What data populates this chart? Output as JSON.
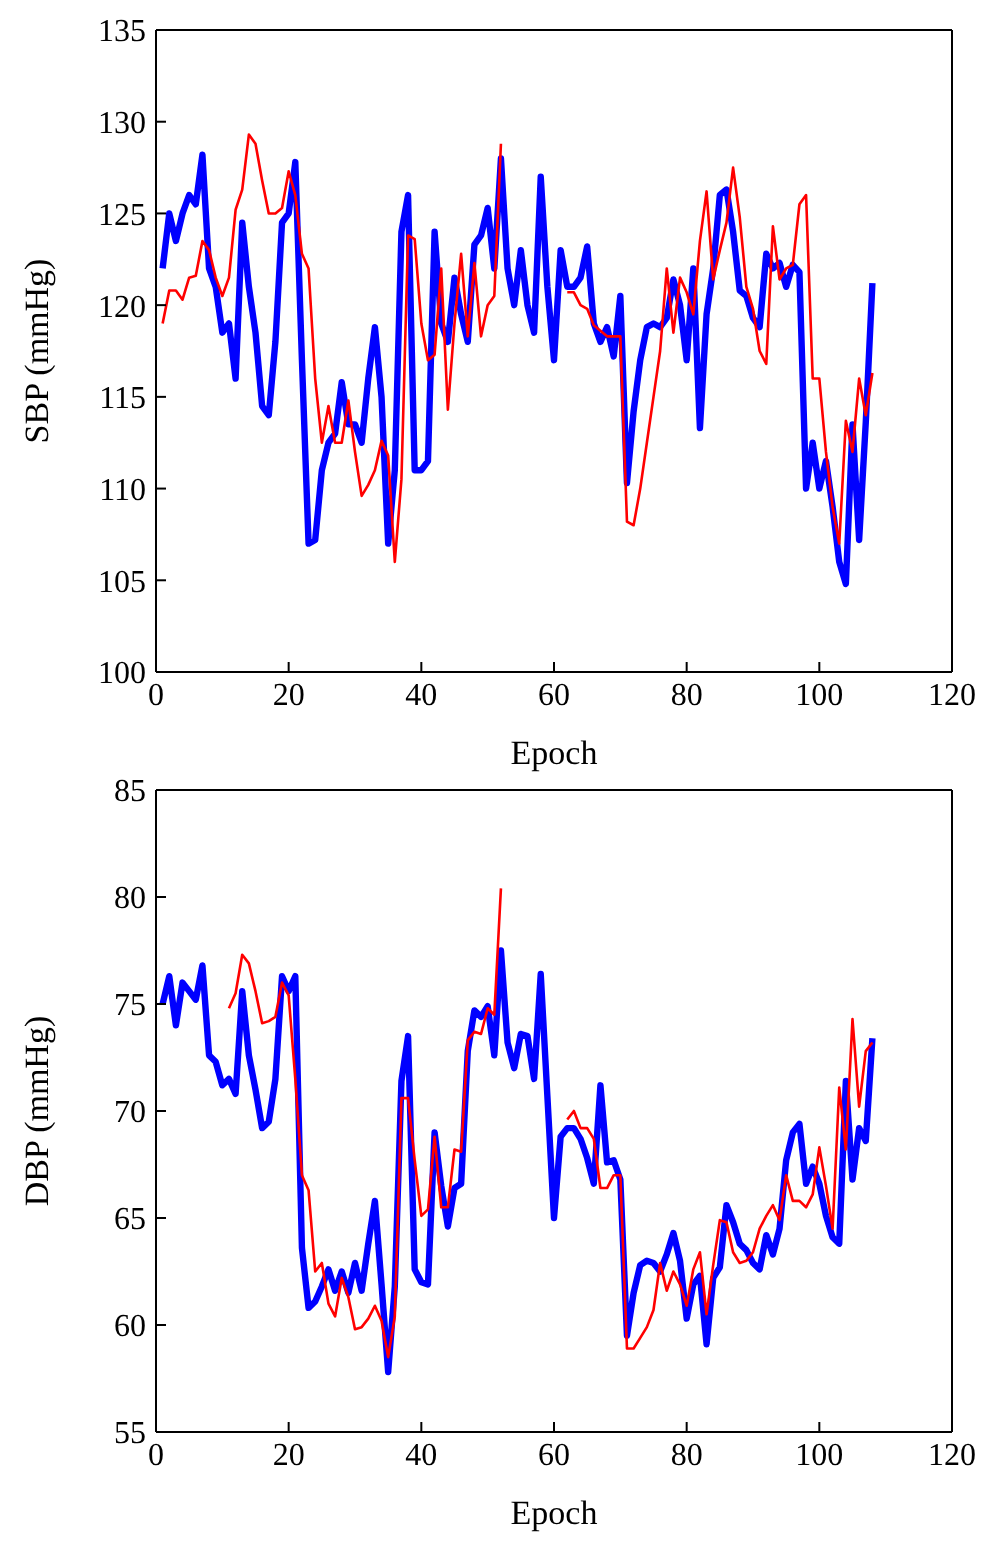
{
  "chart_data": [
    {
      "type": "line",
      "xlabel": "Epoch",
      "ylabel": "SBP (mmHg)",
      "xlim": [
        0,
        120
      ],
      "xticks": [
        0,
        20,
        40,
        60,
        80,
        100,
        120
      ],
      "ylim": [
        100,
        135
      ],
      "yticks": [
        100,
        105,
        110,
        115,
        120,
        125,
        130,
        135
      ],
      "x": [
        1,
        2,
        3,
        4,
        5,
        6,
        7,
        8,
        9,
        10,
        11,
        12,
        13,
        14,
        15,
        16,
        17,
        18,
        19,
        20,
        21,
        22,
        23,
        24,
        25,
        26,
        27,
        28,
        29,
        30,
        31,
        32,
        33,
        34,
        35,
        36,
        37,
        38,
        39,
        40,
        41,
        42,
        43,
        44,
        45,
        46,
        47,
        48,
        49,
        50,
        51,
        52,
        53,
        54,
        55,
        56,
        57,
        58,
        59,
        60,
        61,
        62,
        63,
        64,
        65,
        66,
        67,
        68,
        69,
        70,
        71,
        72,
        73,
        74,
        75,
        76,
        77,
        78,
        79,
        80,
        81,
        82,
        83,
        84,
        85,
        86,
        87,
        88,
        89,
        90,
        91,
        92,
        93,
        94,
        95,
        96,
        97,
        98,
        99,
        100,
        101,
        102,
        103,
        104,
        105,
        106,
        107,
        108
      ],
      "series": [
        {
          "color": "#0000ff",
          "values": [
            122,
            125,
            123.5,
            125,
            126,
            125.5,
            128.2,
            122,
            121,
            118.5,
            119,
            116,
            124.5,
            121,
            118.5,
            114.5,
            114,
            118,
            124.5,
            125,
            127.8,
            117,
            107,
            107.2,
            111,
            112.5,
            113,
            115.8,
            113.5,
            113.5,
            112.5,
            116,
            118.8,
            115,
            107,
            111,
            124,
            126,
            111,
            111,
            111.5,
            124,
            119,
            118,
            121.5,
            119.5,
            118,
            123.3,
            123.8,
            125.3,
            122,
            128,
            122,
            120,
            123,
            120,
            118.5,
            127,
            121,
            117,
            123,
            121,
            121,
            121.5,
            123.2,
            119,
            118,
            118.8,
            117.2,
            120.5,
            110.3,
            114.2,
            117,
            118.8,
            119,
            118.8,
            119.3,
            121.4,
            120,
            117,
            122,
            113.3,
            119.5,
            122,
            126,
            126.3,
            124,
            120.8,
            120.5,
            119.3,
            118.8,
            122.8,
            122,
            122.3,
            121,
            122.2,
            121.8,
            110,
            112.5,
            110,
            111.5,
            109,
            106,
            104.8,
            113.5,
            107.2,
            113.6,
            121.2
          ]
        },
        {
          "color": "#ff0000",
          "values": [
            119,
            120.8,
            120.8,
            120.3,
            121.5,
            121.6,
            123.5,
            123,
            121.5,
            120.5,
            121.5,
            125.2,
            126.3,
            129.3,
            128.8,
            126.8,
            125,
            125,
            125.3,
            127.3,
            126,
            122.8,
            122,
            116,
            112.5,
            114.5,
            112.5,
            112.5,
            114.8,
            112,
            109.6,
            110.2,
            111,
            112.6,
            111.8,
            106,
            110.5,
            123.8,
            123.6,
            119,
            117,
            117.3,
            122,
            114.3,
            119,
            122.8,
            118.3,
            122.3,
            118.3,
            120,
            120.5,
            128.8,
            null,
            null,
            null,
            null,
            null,
            null,
            null,
            null,
            null,
            120.7,
            120.7,
            120,
            119.8,
            118.9,
            118.6,
            118.3,
            118.3,
            118.3,
            108.2,
            108,
            110,
            112.5,
            115,
            117.5,
            122,
            118.5,
            121.5,
            120.7,
            119.5,
            123.5,
            126.2,
            121.4,
            123,
            124.5,
            127.5,
            124.8,
            121,
            119.8,
            117.5,
            116.8,
            124.3,
            121.4,
            122,
            122.2,
            125.5,
            126,
            116,
            116,
            112,
            109,
            107,
            113.7,
            112,
            116,
            114,
            116.3
          ]
        }
      ]
    },
    {
      "type": "line",
      "xlabel": "Epoch",
      "ylabel": "DBP (mmHg)",
      "xlim": [
        0,
        120
      ],
      "xticks": [
        0,
        20,
        40,
        60,
        80,
        100,
        120
      ],
      "ylim": [
        55,
        85
      ],
      "yticks": [
        55,
        60,
        65,
        70,
        75,
        80,
        85
      ],
      "x": [
        1,
        2,
        3,
        4,
        5,
        6,
        7,
        8,
        9,
        10,
        11,
        12,
        13,
        14,
        15,
        16,
        17,
        18,
        19,
        20,
        21,
        22,
        23,
        24,
        25,
        26,
        27,
        28,
        29,
        30,
        31,
        32,
        33,
        34,
        35,
        36,
        37,
        38,
        39,
        40,
        41,
        42,
        43,
        44,
        45,
        46,
        47,
        48,
        49,
        50,
        51,
        52,
        53,
        54,
        55,
        56,
        57,
        58,
        59,
        60,
        61,
        62,
        63,
        64,
        65,
        66,
        67,
        68,
        69,
        70,
        71,
        72,
        73,
        74,
        75,
        76,
        77,
        78,
        79,
        80,
        81,
        82,
        83,
        84,
        85,
        86,
        87,
        88,
        89,
        90,
        91,
        92,
        93,
        94,
        95,
        96,
        97,
        98,
        99,
        100,
        101,
        102,
        103,
        104,
        105,
        106,
        107,
        108
      ],
      "series": [
        {
          "color": "#0000ff",
          "values": [
            75,
            76.3,
            74,
            76,
            75.6,
            75.2,
            76.8,
            72.6,
            72.3,
            71.2,
            71.5,
            70.8,
            75.6,
            72.6,
            71,
            69.2,
            69.5,
            71.5,
            76.3,
            75.6,
            76.3,
            63.6,
            60.8,
            61.1,
            61.8,
            62.6,
            61.6,
            62.5,
            61.5,
            62.9,
            61.6,
            63.8,
            65.8,
            61.9,
            57.8,
            61.8,
            71.4,
            73.5,
            62.6,
            62,
            61.9,
            69,
            66.5,
            64.6,
            66.4,
            66.6,
            72.8,
            74.7,
            74.4,
            74.9,
            72.6,
            77.5,
            73.2,
            72,
            73.6,
            73.5,
            71.5,
            76.4,
            70.7,
            65,
            68.8,
            69.2,
            69.2,
            68.7,
            67.8,
            66.6,
            71.2,
            67.6,
            67.7,
            66.8,
            59.5,
            61.5,
            62.8,
            63,
            62.9,
            62.5,
            63.3,
            64.3,
            63,
            60.3,
            61.9,
            62.3,
            59.1,
            62.2,
            62.7,
            65.6,
            64.8,
            63.8,
            63.5,
            62.9,
            62.6,
            64.2,
            63.3,
            64.5,
            67.7,
            69,
            69.4,
            66.6,
            67.4,
            66.6,
            65.1,
            64.1,
            63.8,
            71.4,
            66.8,
            69.2,
            68.6,
            73.4
          ]
        },
        {
          "color": "#ff0000",
          "values": [
            null,
            null,
            null,
            null,
            null,
            null,
            null,
            null,
            null,
            null,
            74.8,
            75.5,
            77.3,
            76.9,
            75.6,
            74.1,
            74.2,
            74.4,
            76,
            75.4,
            71.5,
            67,
            66.3,
            62.5,
            62.9,
            61,
            60.4,
            62.2,
            61.3,
            59.8,
            59.9,
            60.3,
            60.9,
            60.2,
            58.5,
            60.4,
            70.6,
            70.6,
            67.7,
            65.1,
            65.4,
            68.8,
            65.5,
            65.5,
            68.2,
            68.1,
            73.3,
            73.7,
            73.6,
            74.8,
            74.5,
            80.4,
            null,
            null,
            null,
            null,
            null,
            null,
            null,
            null,
            null,
            69.6,
            70,
            69.2,
            69.2,
            68.7,
            66.4,
            66.4,
            67,
            67,
            58.9,
            58.9,
            59.4,
            59.9,
            60.7,
            62.9,
            61.6,
            62.5,
            61.9,
            60.9,
            62.6,
            63.4,
            60.5,
            62.8,
            64.9,
            64.8,
            63.4,
            62.9,
            63,
            63.4,
            64.5,
            65.1,
            65.6,
            64.9,
            67,
            65.8,
            65.8,
            65.5,
            66.1,
            68.3,
            66.5,
            64.5,
            71.1,
            68.2,
            74.3,
            70.2,
            72.8,
            73.2
          ]
        }
      ]
    }
  ]
}
